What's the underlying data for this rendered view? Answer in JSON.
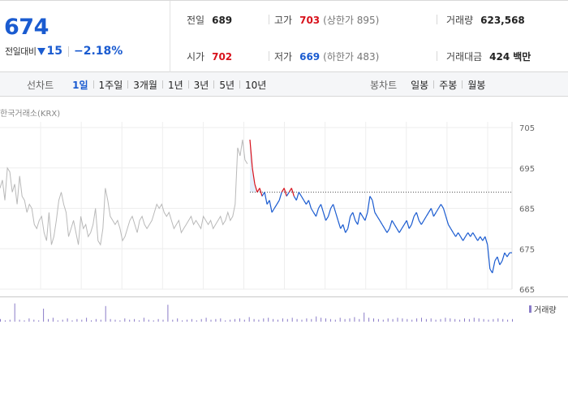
{
  "quote": {
    "price": "674",
    "change_label": "전일대비",
    "change_value": "15",
    "change_pct": "−2.18%",
    "prev_close": {
      "label": "전일",
      "value": "689"
    },
    "high": {
      "label": "고가",
      "value": "703",
      "limit": "(상한가 895)"
    },
    "volume": {
      "label": "거래량",
      "value": "623,568"
    },
    "open": {
      "label": "시가",
      "value": "702"
    },
    "low": {
      "label": "저가",
      "value": "669",
      "limit": "(하한가 483)"
    },
    "turnover": {
      "label": "거래대금",
      "value": "424",
      "unit": "백만"
    }
  },
  "toolbar": {
    "line_title": "선차트",
    "line_periods": [
      "1일",
      "1주일",
      "3개월",
      "1년",
      "3년",
      "5년",
      "10년"
    ],
    "line_active": 0,
    "candle_title": "봉차트",
    "candle_periods": [
      "일봉",
      "주봉",
      "월봉"
    ]
  },
  "source_label": "한국거래소(KRX)",
  "colors": {
    "up": "#d8121c",
    "down": "#1a5bd0",
    "prev_day_line": "#b9b9b9",
    "fill": "#e4eefb",
    "volume": "#8a7cc8"
  },
  "chart_data": {
    "type": "line",
    "ylim": [
      665,
      705
    ],
    "yticks": [
      705,
      695,
      685,
      675,
      665
    ],
    "reference_value": 689,
    "previous_day_series": [
      690,
      692,
      687,
      695,
      694,
      689,
      691,
      686,
      693,
      688,
      687,
      684,
      686,
      685,
      681,
      680,
      682,
      683,
      679,
      677,
      684,
      676,
      678,
      682,
      687,
      689,
      686,
      684,
      678,
      680,
      682,
      679,
      676,
      683,
      680,
      681,
      678,
      679,
      681,
      685,
      677,
      676,
      680,
      690,
      687,
      683,
      682,
      681,
      682,
      680,
      677,
      678,
      680,
      682,
      683,
      681,
      679,
      682,
      683,
      681,
      680,
      681,
      682,
      684,
      686,
      685,
      686,
      684,
      683,
      684,
      682,
      680,
      681,
      682,
      679,
      680,
      681,
      682,
      683,
      681,
      682,
      681,
      680,
      683,
      682,
      681,
      682,
      680,
      681,
      682,
      683,
      681,
      682,
      684,
      682,
      683,
      686,
      700,
      698,
      702,
      697,
      696
    ],
    "today_series": [
      702,
      695,
      691,
      689,
      690,
      688,
      689,
      686,
      687,
      684,
      685,
      686,
      687,
      689,
      690,
      688,
      689,
      690,
      688,
      687,
      689,
      688,
      687,
      686,
      687,
      685,
      684,
      683,
      685,
      686,
      684,
      682,
      683,
      685,
      686,
      684,
      682,
      680,
      681,
      679,
      680,
      683,
      684,
      682,
      681,
      684,
      683,
      682,
      684,
      688,
      687,
      684,
      683,
      682,
      681,
      680,
      679,
      680,
      682,
      681,
      680,
      679,
      680,
      681,
      682,
      680,
      681,
      683,
      684,
      682,
      681,
      682,
      683,
      684,
      685,
      683,
      684,
      685,
      686,
      685,
      683,
      681,
      680,
      679,
      678,
      679,
      678,
      677,
      678,
      679,
      678,
      679,
      678,
      677,
      678,
      677,
      678,
      676,
      670,
      669,
      672,
      673,
      671,
      672,
      674,
      673,
      674,
      674
    ],
    "volume_series": [
      4,
      2,
      3,
      28,
      3,
      2,
      5,
      3,
      2,
      20,
      4,
      6,
      2,
      3,
      5,
      2,
      4,
      3,
      6,
      2,
      4,
      3,
      24,
      4,
      3,
      2,
      5,
      3,
      4,
      2,
      6,
      3,
      2,
      4,
      3,
      26,
      3,
      5,
      2,
      3,
      4,
      2,
      4,
      6,
      3,
      4,
      5,
      2,
      3,
      4,
      5,
      3,
      7,
      4,
      3,
      5,
      6,
      4,
      3,
      5,
      4,
      6,
      4,
      3,
      5,
      4,
      8,
      6,
      5,
      4,
      3,
      6,
      4,
      5,
      7,
      4,
      14,
      6,
      5,
      4,
      3,
      5,
      4,
      6,
      5,
      4,
      3,
      5,
      6,
      4,
      5,
      3,
      4,
      6,
      5,
      4,
      3,
      5,
      4,
      6,
      5,
      4,
      3,
      4,
      5,
      4,
      3,
      4
    ],
    "legend": "거래량"
  }
}
